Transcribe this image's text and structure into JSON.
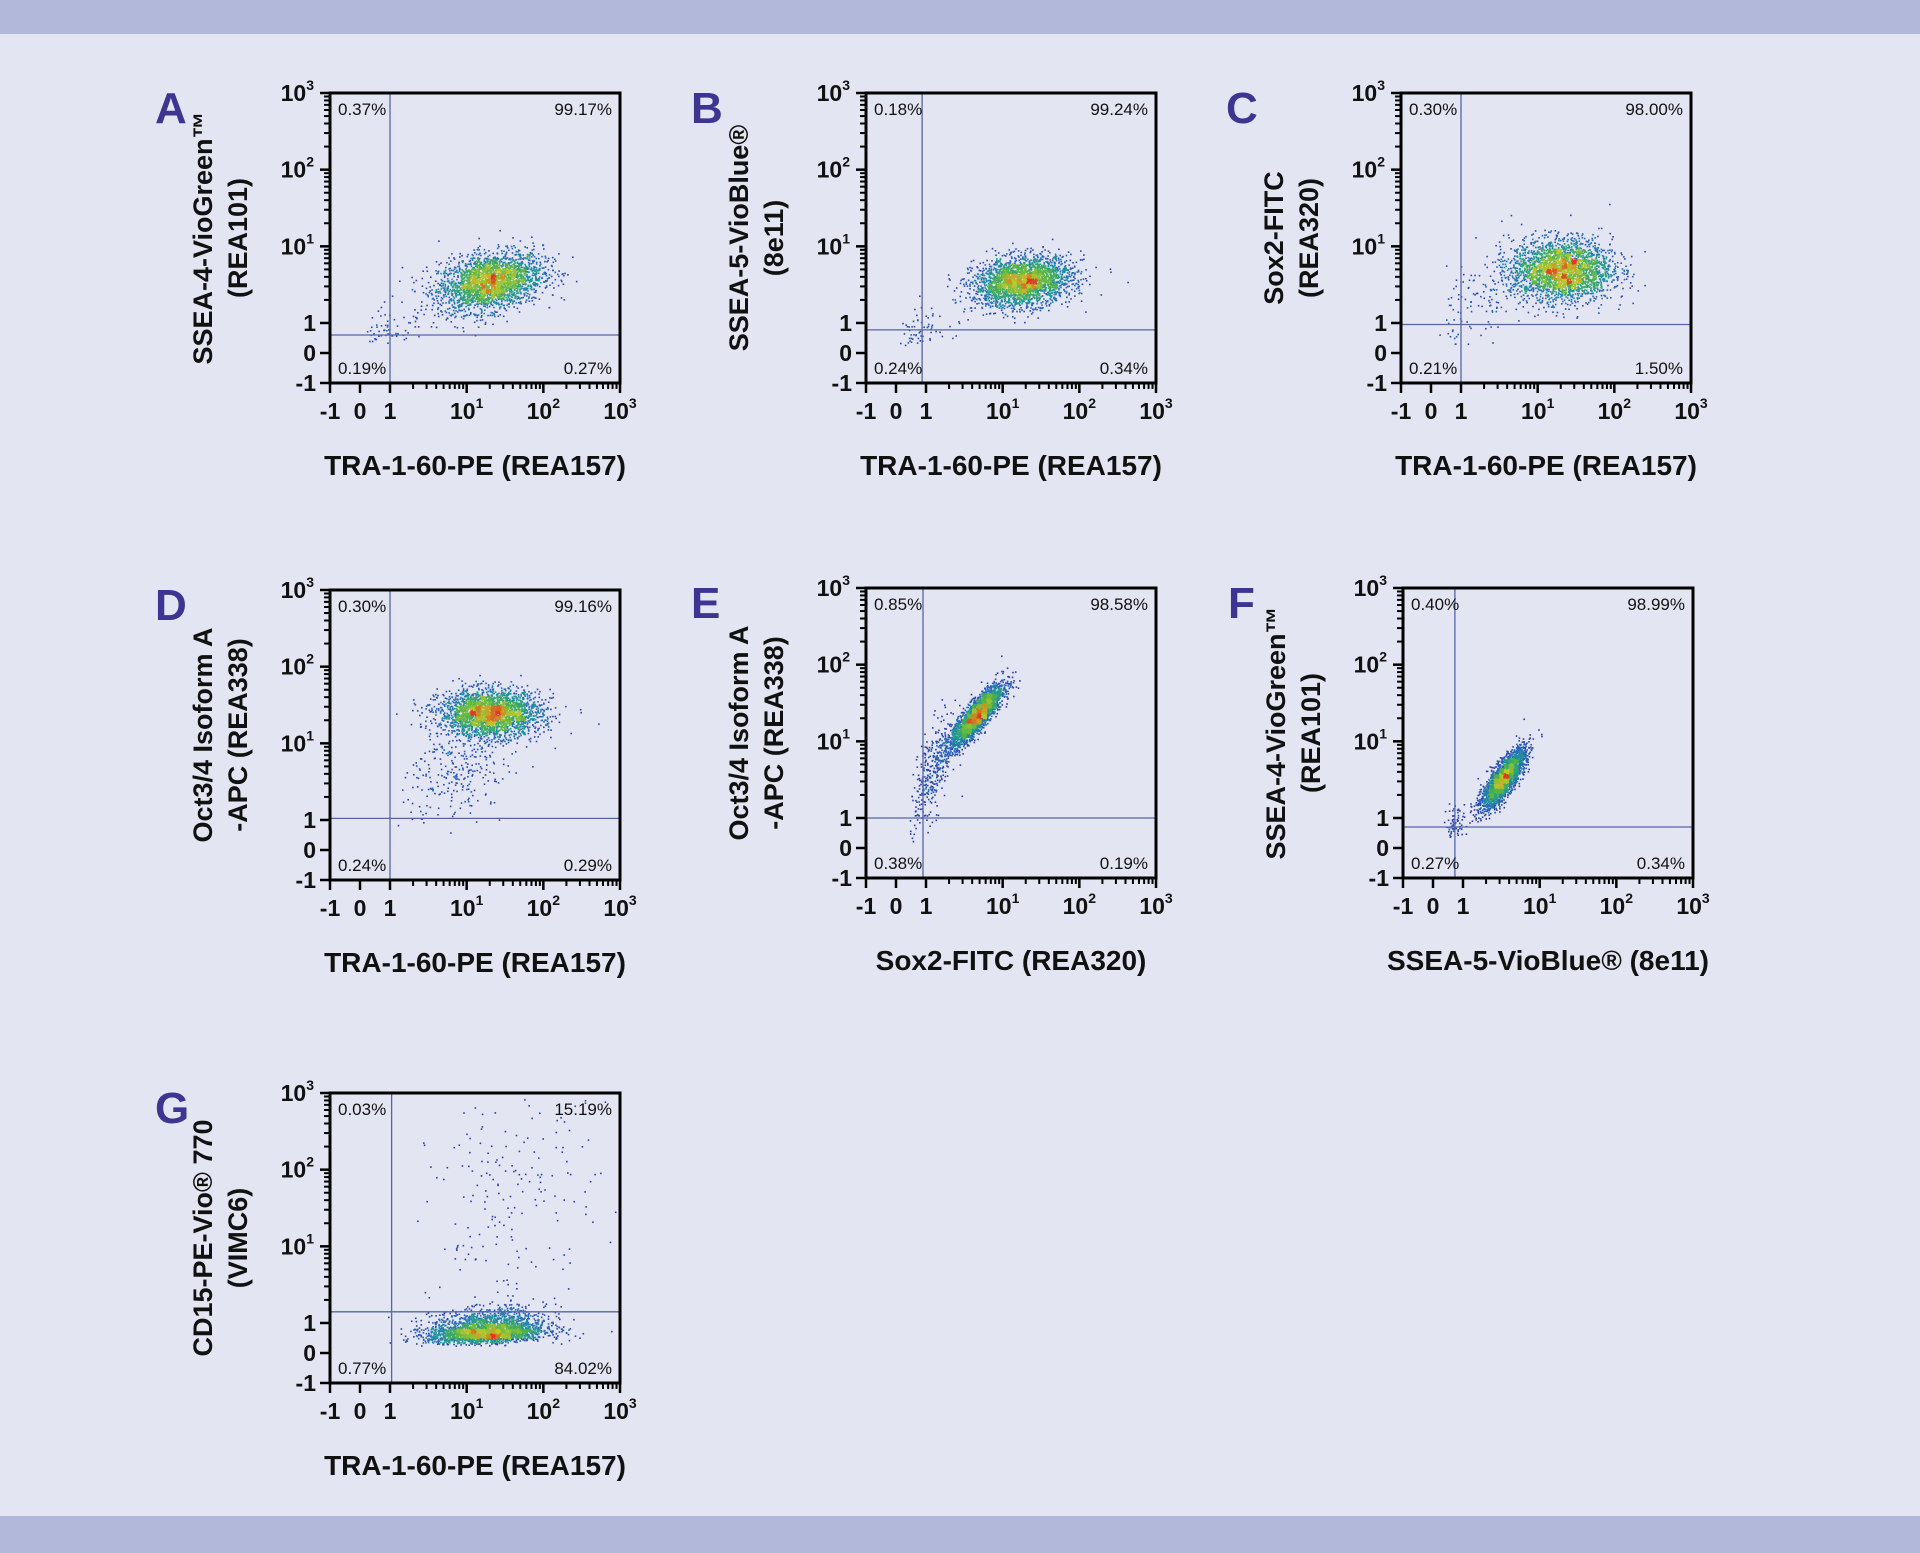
{
  "colors": {
    "background": "#e3e6f2",
    "band": "#b1b8da",
    "panel_letter": "#3d3591",
    "gate": "#5565a8",
    "density_low": "#2b2d9e",
    "density_high": "#e03a1e"
  },
  "axis_ticks": [
    {
      "value": -1,
      "base": "-1",
      "exp": ""
    },
    {
      "value": 0,
      "base": "0",
      "exp": ""
    },
    {
      "value": 1,
      "base": "1",
      "exp": ""
    },
    {
      "value": 10,
      "base": "10",
      "exp": "1"
    },
    {
      "value": 100,
      "base": "10",
      "exp": "2"
    },
    {
      "value": 1000,
      "base": "10",
      "exp": "3"
    }
  ],
  "y_axis_top_label": {
    "base": "10",
    "exp": "3"
  },
  "chart_data": [
    {
      "panel": "A",
      "type": "scatter",
      "scale": "biexponential",
      "xlim": [
        -1,
        1000
      ],
      "ylim": [
        -1,
        1000
      ],
      "xlabel": "TRA-1-60-PE (REA157)",
      "ylabel": [
        "SSEA-4-VioGreen™",
        "(REA101)"
      ],
      "gate": {
        "x": 1.0,
        "y": 0.6
      },
      "quadrants": {
        "upper_left": "0.37%",
        "upper_right": "99.17%",
        "lower_left": "0.19%",
        "lower_right": "0.27%"
      },
      "populations": [
        {
          "x": 20,
          "y": 3.5,
          "sx": 0.34,
          "sy": 0.19,
          "rho": 0.3,
          "n": 2600
        },
        {
          "x": 0.9,
          "y": 0.8,
          "sx": 0.25,
          "sy": 0.2,
          "rho": 0.3,
          "n": 60
        }
      ]
    },
    {
      "panel": "B",
      "type": "scatter",
      "scale": "biexponential",
      "xlim": [
        -1,
        1000
      ],
      "ylim": [
        -1,
        1000
      ],
      "xlabel": "TRA-1-60-PE (REA157)",
      "ylabel": [
        "SSEA-5-VioBlue®",
        "(8e11)"
      ],
      "gate": {
        "x": 0.87,
        "y": 0.77
      },
      "quadrants": {
        "upper_left": "0.18%",
        "upper_right": "99.24%",
        "lower_left": "0.24%",
        "lower_right": "0.34%"
      },
      "populations": [
        {
          "x": 18,
          "y": 3.5,
          "sx": 0.32,
          "sy": 0.16,
          "rho": 0.2,
          "n": 2600
        },
        {
          "x": 0.8,
          "y": 0.8,
          "sx": 0.25,
          "sy": 0.2,
          "rho": 0.3,
          "n": 60
        }
      ]
    },
    {
      "panel": "C",
      "type": "scatter",
      "scale": "biexponential",
      "xlim": [
        -1,
        1000
      ],
      "ylim": [
        -1,
        1000
      ],
      "xlabel": "TRA-1-60-PE (REA157)",
      "ylabel": [
        "Sox2-FITC",
        "(REA320)"
      ],
      "gate": {
        "x": 1.0,
        "y": 0.95
      },
      "quadrants": {
        "upper_left": "0.30%",
        "upper_right": "98.00%",
        "lower_left": "0.21%",
        "lower_right": "1.50%"
      },
      "populations": [
        {
          "x": 20,
          "y": 5,
          "sx": 0.33,
          "sy": 0.2,
          "rho": 0.0,
          "n": 2600
        },
        {
          "x": 2,
          "y": 2,
          "sx": 0.3,
          "sy": 0.3,
          "rho": 0.3,
          "n": 120
        }
      ]
    },
    {
      "panel": "D",
      "type": "scatter",
      "scale": "biexponential",
      "xlim": [
        -1,
        1000
      ],
      "ylim": [
        -1,
        1000
      ],
      "xlabel": "TRA-1-60-PE (REA157)",
      "ylabel": [
        "Oct3/4 Isoform A",
        "-APC (REA338)"
      ],
      "gate": {
        "x": 1.0,
        "y": 1.05
      },
      "quadrants": {
        "upper_left": "0.30%",
        "upper_right": "99.16%",
        "lower_left": "0.24%",
        "lower_right": "0.29%"
      },
      "populations": [
        {
          "x": 20,
          "y": 25,
          "sx": 0.33,
          "sy": 0.15,
          "rho": 0.0,
          "n": 2600
        },
        {
          "x": 8,
          "y": 5,
          "sx": 0.35,
          "sy": 0.35,
          "rho": 0.4,
          "n": 300
        }
      ]
    },
    {
      "panel": "E",
      "type": "scatter",
      "scale": "biexponential",
      "xlim": [
        -1,
        1000
      ],
      "ylim": [
        -1,
        1000
      ],
      "xlabel": "Sox2-FITC (REA320)",
      "ylabel": [
        "Oct3/4 Isoform A",
        "-APC (REA338)"
      ],
      "gate": {
        "x": 0.9,
        "y": 1.0
      },
      "quadrants": {
        "upper_left": "0.85%",
        "upper_right": "98.58%",
        "lower_left": "0.38%",
        "lower_right": "0.19%"
      },
      "populations": [
        {
          "x": 4.5,
          "y": 22,
          "sx": 0.17,
          "sy": 0.2,
          "rho": 0.85,
          "n": 2600
        },
        {
          "x": 1.2,
          "y": 4,
          "sx": 0.15,
          "sy": 0.35,
          "rho": 0.6,
          "n": 350
        }
      ]
    },
    {
      "panel": "F",
      "type": "scatter",
      "scale": "biexponential",
      "xlim": [
        -1,
        1000
      ],
      "ylim": [
        -1,
        1000
      ],
      "xlabel": "SSEA-5-VioBlue® (8e11)",
      "ylabel": [
        "SSEA-4-VioGreen™",
        "(REA101)"
      ],
      "gate": {
        "x": 0.73,
        "y": 0.7
      },
      "quadrants": {
        "upper_left": "0.40%",
        "upper_right": "98.99%",
        "lower_left": "0.27%",
        "lower_right": "0.34%"
      },
      "populations": [
        {
          "x": 3.3,
          "y": 3.3,
          "sx": 0.14,
          "sy": 0.19,
          "rho": 0.8,
          "n": 2600
        },
        {
          "x": 0.7,
          "y": 0.8,
          "sx": 0.12,
          "sy": 0.15,
          "rho": 0.4,
          "n": 70
        }
      ]
    },
    {
      "panel": "G",
      "type": "scatter",
      "scale": "biexponential",
      "xlim": [
        -1,
        1000
      ],
      "ylim": [
        -1,
        1000
      ],
      "xlabel": "TRA-1-60-PE (REA157)",
      "ylabel": [
        "CD15-PE-Vio® 770",
        "(VIMC6)"
      ],
      "gate": {
        "x": 1.05,
        "y": 1.4
      },
      "quadrants": {
        "upper_left": "0.03%",
        "upper_right": "15.19%",
        "lower_left": "0.77%",
        "lower_right": "84.02%"
      },
      "populations": [
        {
          "x": 18,
          "y": 0.75,
          "sx": 0.38,
          "sy": 0.15,
          "rho": 0.2,
          "n": 2600
        },
        {
          "x": 40,
          "y": 40,
          "sx": 0.55,
          "sy": 0.8,
          "rho": 0.2,
          "n": 200
        }
      ]
    }
  ]
}
